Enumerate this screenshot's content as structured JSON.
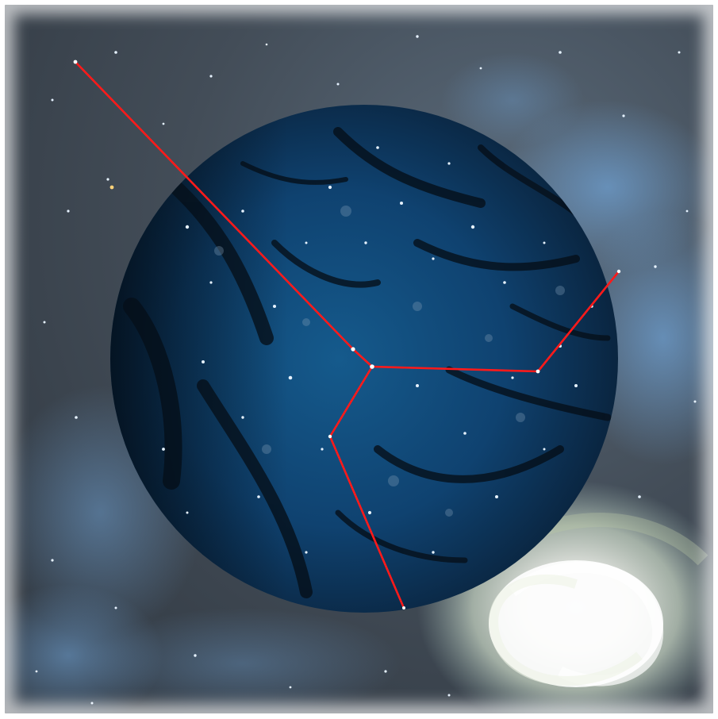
{
  "scene": {
    "subject": "space-field-with-circular-inset-and-spiral-galaxy",
    "palette": {
      "space_background": "#3a434d",
      "nebula_blue": "#4f7fb0",
      "inset_blue": "#0f3f66",
      "inset_dark": "#0a1a2a",
      "filament_color": "#06101a",
      "galaxy_core": "#ffffff",
      "galaxy_halo": "#c9d8c2",
      "star_color": "#e6f2ff",
      "trace_line": "#ff1a1a"
    }
  }
}
